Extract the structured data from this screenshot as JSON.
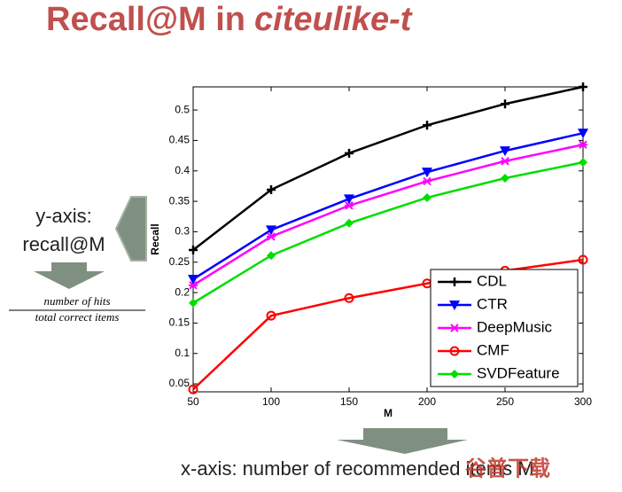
{
  "title": {
    "text": "Recall@M in",
    "emphasis": "citeulike-t"
  },
  "notes": {
    "y_axis": [
      "y-axis:",
      "recall@M"
    ],
    "numerator": "number of hits",
    "denominator": "total correct items",
    "x_axis": "x-axis: number of recommended items M",
    "watermark": "谷普下载"
  },
  "chart_data": {
    "type": "line",
    "xlabel": "M",
    "ylabel": "Recall",
    "x": [
      50,
      100,
      150,
      200,
      250,
      300
    ],
    "xlim": [
      50,
      300
    ],
    "xticks": [
      50,
      100,
      150,
      200,
      250,
      300
    ],
    "ylim": [
      0.037,
      0.538
    ],
    "yticks": [
      0.05,
      0.1,
      0.15,
      0.2,
      0.25,
      0.3,
      0.35,
      0.4,
      0.45,
      0.5
    ],
    "legend": "lower right",
    "series": [
      {
        "name": "CDL",
        "color": "#000000",
        "marker": "plus",
        "values": [
          0.27,
          0.369,
          0.429,
          0.475,
          0.51,
          0.538
        ]
      },
      {
        "name": "CTR",
        "color": "#0000ff",
        "marker": "triangle-down",
        "values": [
          0.222,
          0.303,
          0.354,
          0.398,
          0.433,
          0.462
        ]
      },
      {
        "name": "DeepMusic",
        "color": "#ff00ff",
        "marker": "x",
        "values": [
          0.212,
          0.292,
          0.343,
          0.383,
          0.416,
          0.443
        ]
      },
      {
        "name": "CMF",
        "color": "#ff0000",
        "marker": "circle",
        "values": [
          0.041,
          0.162,
          0.191,
          0.215,
          0.236,
          0.254
        ]
      },
      {
        "name": "SVDFeature",
        "color": "#00dd00",
        "marker": "diamond",
        "values": [
          0.183,
          0.261,
          0.314,
          0.356,
          0.388,
          0.414
        ]
      }
    ]
  }
}
